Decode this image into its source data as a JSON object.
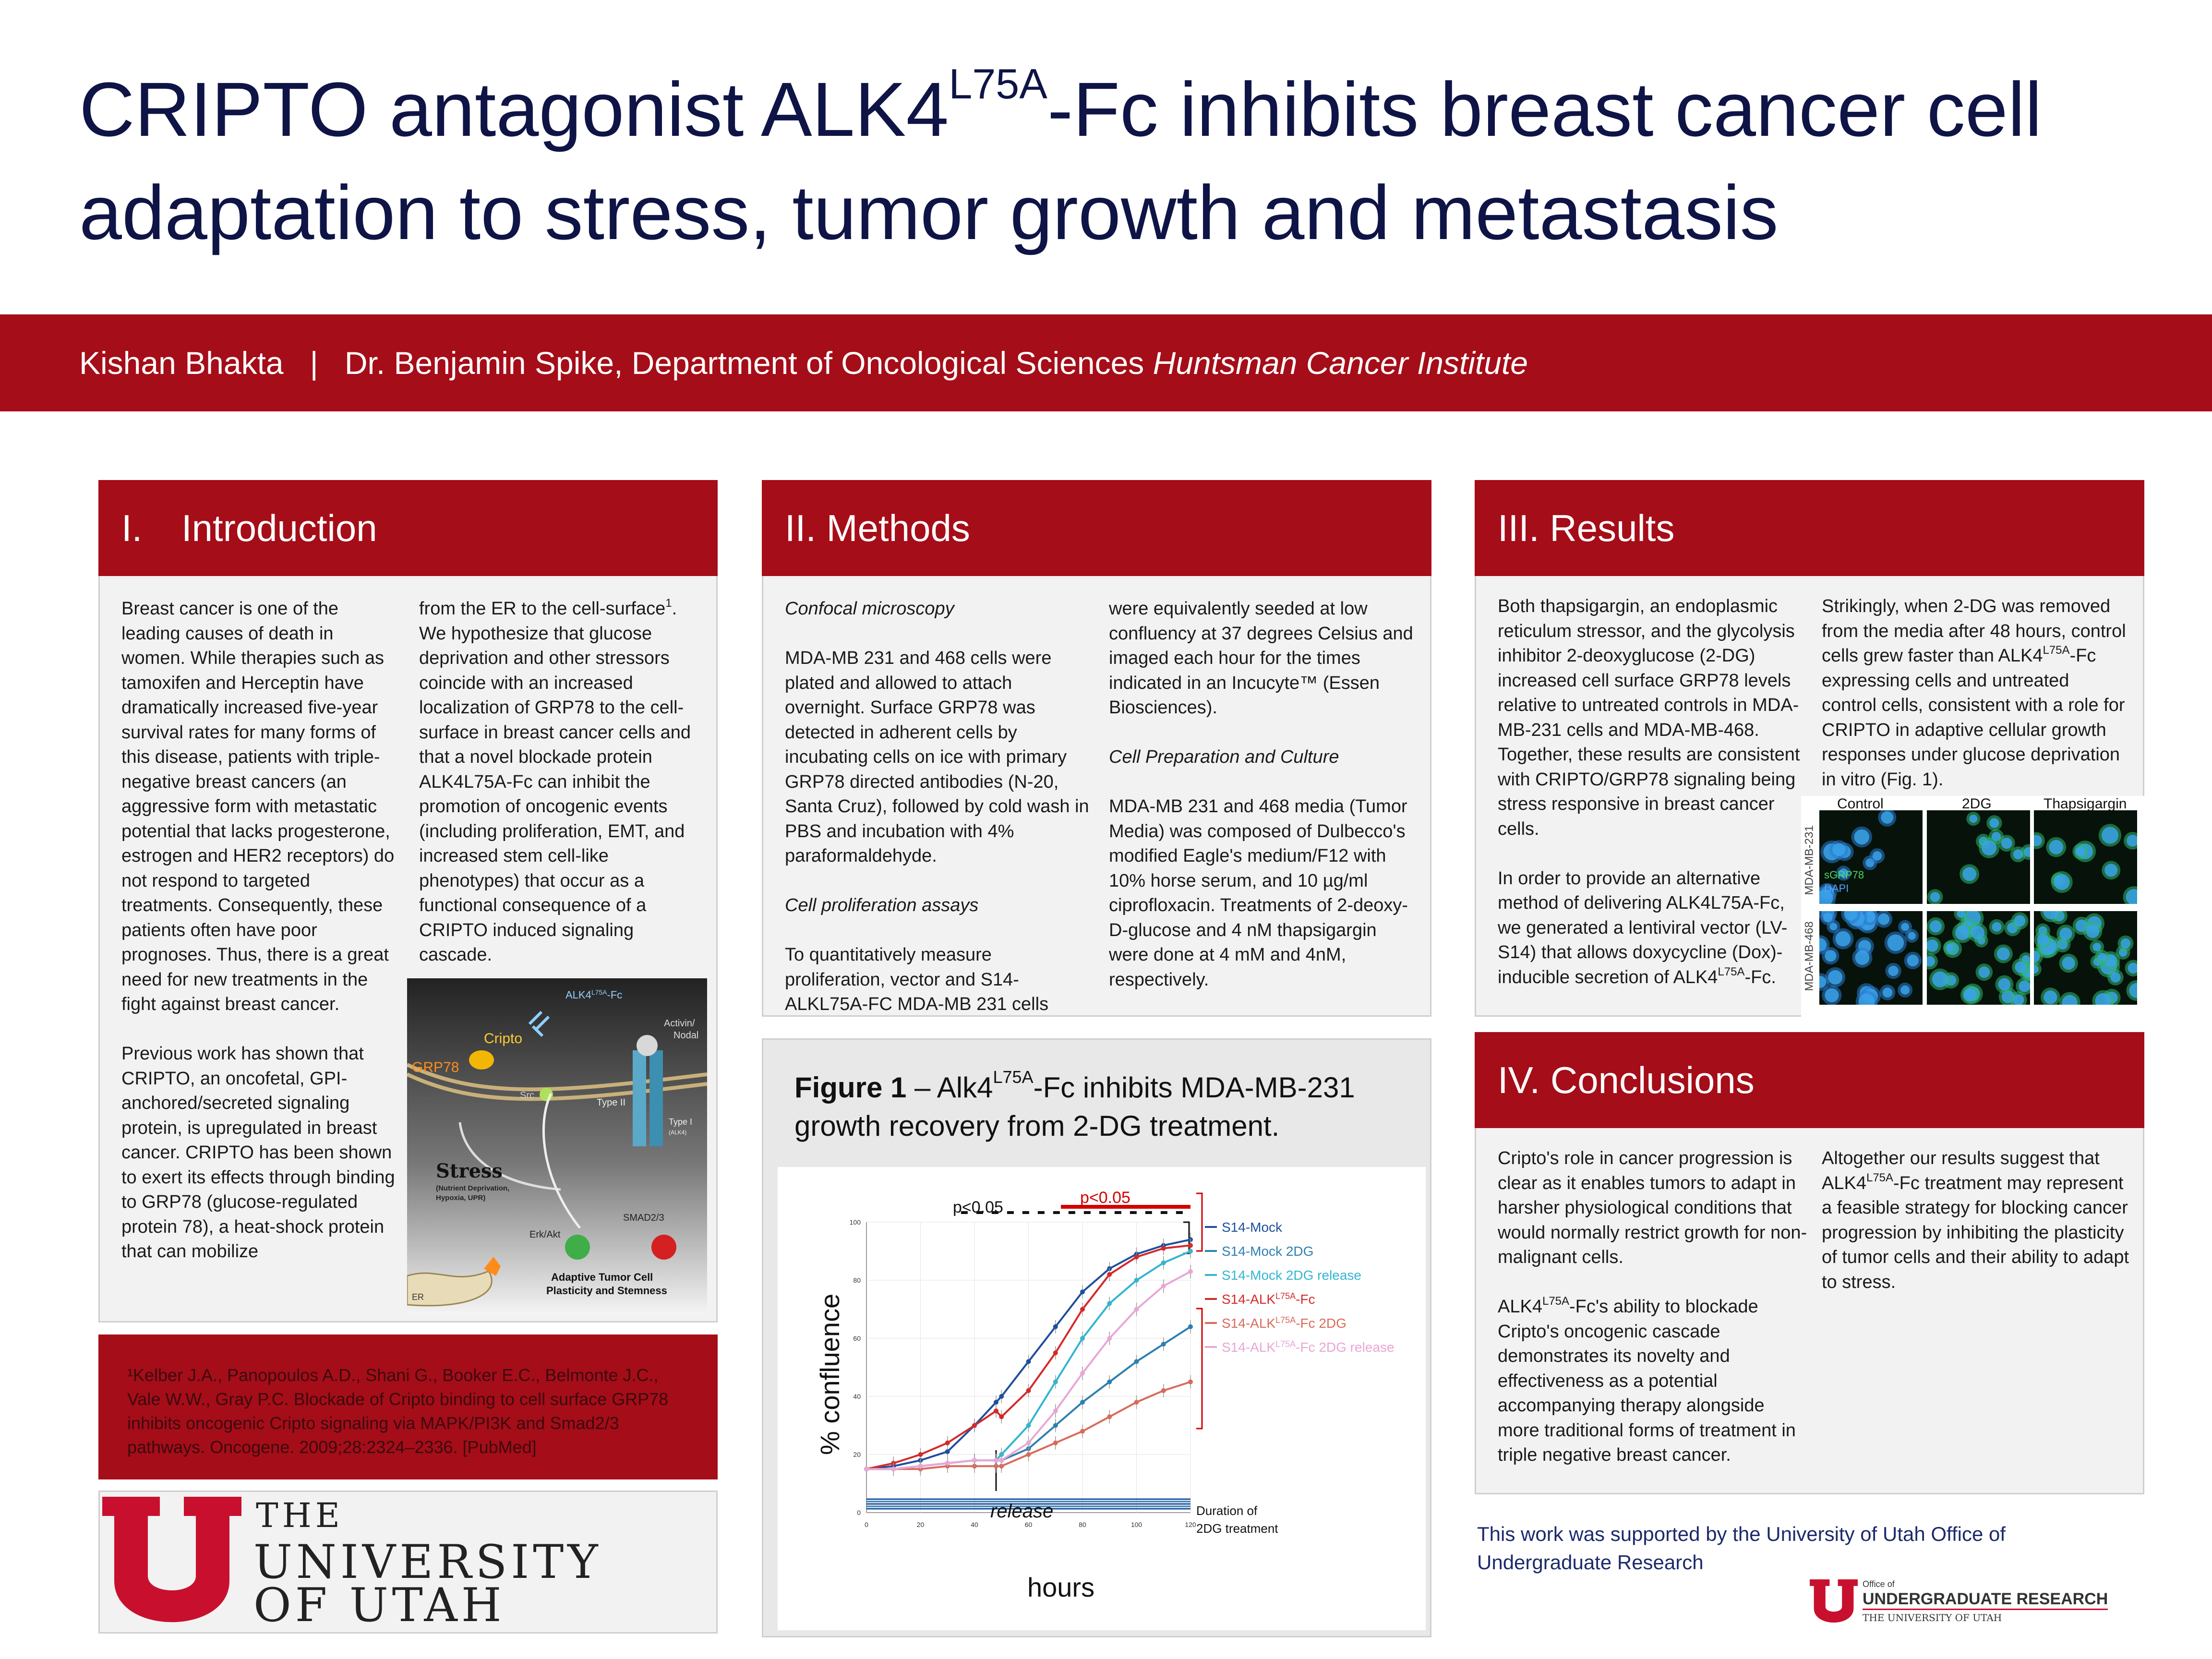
{
  "title": {
    "line1_a": "CRIPTO antagonist ALK4",
    "line1_sup": "L75A",
    "line1_b": "-Fc inhibits breast cancer cell",
    "line2": "adaptation to stress, tumor growth and metastasis"
  },
  "banner": {
    "author": "Kishan Bhakta",
    "sep": "|",
    "advisor": "Dr. Benjamin Spike, Department of Oncological Sciences",
    "institute": "Huntsman Cancer Institute"
  },
  "intro": {
    "num": "I.",
    "heading": "Introduction",
    "col1_p1": "Breast cancer is one of the leading causes of death in women. While therapies such as tamoxifen and Herceptin have dramatically increased five-year survival rates for many forms of this disease, patients with triple-negative breast cancers (an aggressive form with metastatic potential that lacks progesterone, estrogen and HER2 receptors) do not respond to targeted treatments. Consequently, these patients often have poor prognoses. Thus, there is a great need for new treatments in the fight against breast cancer.",
    "col1_p2": "Previous work has shown that CRIPTO, an oncofetal, GPI-anchored/secreted signaling protein, is upregulated in breast cancer. CRIPTO has been shown to exert its effects through binding to GRP78 (glucose-regulated protein 78), a heat-shock protein that can mobilize",
    "col2_a": "from the ER to the cell-surface",
    "col2_ref": "1",
    "col2_b": ". We hypothesize that glucose deprivation and other stressors coincide with an increased localization of GRP78 to the cell-surface in breast cancer cells and that a novel blockade protein ALK4L75A-Fc can inhibit the promotion of oncogenic events (including proliferation, EMT, and increased stem cell-like phenotypes) that occur as a functional consequence of a CRIPTO induced signaling cascade.",
    "diagram": {
      "alk4": "ALK4",
      "alk4_sup": "L75A",
      "alk4_tail": "-Fc",
      "cripto": "Cripto",
      "grp78": "GRP78",
      "src": "Src",
      "activin": "Activin/",
      "nodal": "Nodal",
      "type2": "Type II",
      "type1": "Type I",
      "alk4_small": "(ALK4)",
      "stress": "Stress",
      "stress_sub1": "(Nutrient Deprivation,",
      "stress_sub2": "Hypoxia, UPR)",
      "erk": "Erk/Akt",
      "smad": "SMAD2/3",
      "adaptive1": "Adaptive Tumor Cell",
      "adaptive2": "Plasticity and Stemness",
      "er": "ER"
    }
  },
  "reference": "¹Kelber J.A., Panopoulos A.D., Shani G., Booker E.C., Belmonte J.C., Vale W.W., Gray P.C. Blockade of Cripto binding to cell surface GRP78 inhibits oncogenic Cripto signaling via MAPK/PI3K and Smad2/3 pathways. Oncogene. 2009;28:2324–2336. [PubMed]",
  "logo": {
    "the": "THE",
    "university": "UNIVERSITY",
    "of_utah": "OF UTAH",
    "color": "#c8102e"
  },
  "methods": {
    "heading": "II. Methods",
    "h1": "Confocal microscopy",
    "p1": "MDA-MB 231 and 468 cells were plated and allowed to attach overnight. Surface GRP78 was detected in adherent cells by incubating cells on ice with primary GRP78 directed antibodies (N-20, Santa Cruz), followed by cold wash in PBS and incubation with 4% paraformaldehyde.",
    "h2": "Cell proliferation assays",
    "p2": "To quantitatively measure proliferation, vector and S14-ALKL75A-FC MDA-MB 231 cells",
    "p2b": "were equivalently seeded at low confluency at 37 degrees Celsius and imaged each hour for the times indicated in an Incucyte™ (Essen Biosciences).",
    "h3": "Cell Preparation and Culture",
    "p3": "MDA-MB 231 and 468 media (Tumor Media) was composed of Dulbecco's modified Eagle's medium/F12 with 10% horse serum, and 10 µg/ml ciprofloxacin. Treatments of 2-deoxy-D-glucose and 4 nM thapsigargin were done at 4 mM and 4nM, respectively."
  },
  "figure": {
    "label": "Figure 1",
    "caption_a": " – Alk4",
    "caption_sup": "L75A",
    "caption_b": "-Fc inhibits MDA-MB-231 growth recovery from 2-DG treatment."
  },
  "chart_data": {
    "type": "line",
    "xlabel": "hours",
    "ylabel": "% confluence",
    "xlim": [
      0,
      120
    ],
    "ylim": [
      0,
      100
    ],
    "xticks": [
      "0",
      "20",
      "40",
      "60",
      "80",
      "100",
      "120"
    ],
    "yticks": [
      "0",
      "20",
      "40",
      "60",
      "80",
      "100"
    ],
    "x": [
      0,
      10,
      20,
      30,
      40,
      48,
      50,
      60,
      70,
      80,
      90,
      100,
      110,
      120
    ],
    "series": [
      {
        "name": "S14-Mock",
        "color": "#1f4e9c",
        "values": [
          15,
          16,
          18,
          21,
          30,
          38,
          40,
          52,
          64,
          76,
          84,
          89,
          92,
          94
        ]
      },
      {
        "name": "S14-Mock 2DG",
        "color": "#2e7fb0",
        "values": [
          15,
          15,
          16,
          17,
          18,
          18,
          18,
          22,
          30,
          38,
          45,
          52,
          58,
          64
        ]
      },
      {
        "name": "S14-Mock 2DG release",
        "color": "#33b5d0",
        "values": [
          15,
          15,
          16,
          17,
          18,
          18,
          20,
          30,
          45,
          60,
          72,
          80,
          86,
          90
        ]
      },
      {
        "name": "S14-ALK^L75A-Fc",
        "color": "#d42a2a",
        "values": [
          15,
          17,
          20,
          24,
          30,
          35,
          33,
          42,
          55,
          70,
          82,
          88,
          91,
          92
        ]
      },
      {
        "name": "S14-ALK^L75A-Fc 2DG",
        "color": "#d96a5a",
        "values": [
          15,
          15,
          15,
          16,
          16,
          16,
          16,
          20,
          24,
          28,
          33,
          38,
          42,
          45
        ]
      },
      {
        "name": "S14-ALK^L75A-Fc 2DG release",
        "color": "#e9a6d6",
        "values": [
          15,
          15,
          16,
          17,
          18,
          18,
          18,
          24,
          35,
          48,
          60,
          70,
          78,
          83
        ]
      }
    ],
    "annotations": {
      "p1": "p<0.05",
      "p2": "p<0.05",
      "release": "release",
      "duration1": "Duration of",
      "duration2": "2DG treatment"
    }
  },
  "results": {
    "heading": "III. Results",
    "col1_p1": "Both thapsigargin, an endoplasmic reticulum stressor, and the glycolysis inhibitor 2-deoxyglucose (2-DG) increased cell surface GRP78 levels relative to untreated controls in MDA-MB-231 cells and MDA-MB-468. Together, these results are consistent with CRIPTO/GRP78 signaling being stress responsive in breast cancer cells.",
    "col1_p2_a": "In order to provide an alternative method of delivering ALK4L75A-Fc, we generated a lentiviral vector (LV-S14) that allows doxycycline (Dox)-inducible secretion of ALK4",
    "col1_p2_sup": "L75A",
    "col1_p2_b": "-Fc.",
    "col2_a": "Strikingly, when 2-DG was removed from the media after 48 hours, control cells grew faster than ALK4",
    "col2_sup": "L75A",
    "col2_b": "-Fc expressing cells and untreated control cells, consistent with a role for CRIPTO in adaptive cellular growth responses under glucose deprivation in vitro (Fig. 1).",
    "micro": {
      "col_control": "Control",
      "col_2dg": "2DG",
      "col_thaps": "Thapsigargin",
      "row1": "MDA-MB-231",
      "row2": "MDA-MB-468",
      "legend_grp": "sGRP78",
      "legend_dapi": "DAPI"
    }
  },
  "conclusions": {
    "heading": "IV. Conclusions",
    "p1": "Cripto's role in cancer progression is clear as it enables tumors to adapt in harsher physiological conditions that would normally restrict growth for non-malignant cells.",
    "p2_a": "ALK4",
    "p2_sup": "L75A",
    "p2_b": "-Fc's ability to blockade Cripto's oncogenic cascade demonstrates its novelty and effectiveness as a potential accompanying therapy alongside more traditional forms of treatment in triple negative breast cancer.",
    "col2_a": "Altogether our results suggest that ALK4",
    "col2_sup": "L75A",
    "col2_b": "-Fc treatment may represent a feasible strategy for blocking cancer progression by inhibiting the plasticity of tumor cells and their ability to adapt to stress."
  },
  "support": "This work was supported by the University of Utah Office of Undergraduate Research",
  "our_logo": {
    "office": "Office of",
    "ugr": "UNDERGRADUATE RESEARCH",
    "uu": "THE UNIVERSITY OF UTAH"
  }
}
